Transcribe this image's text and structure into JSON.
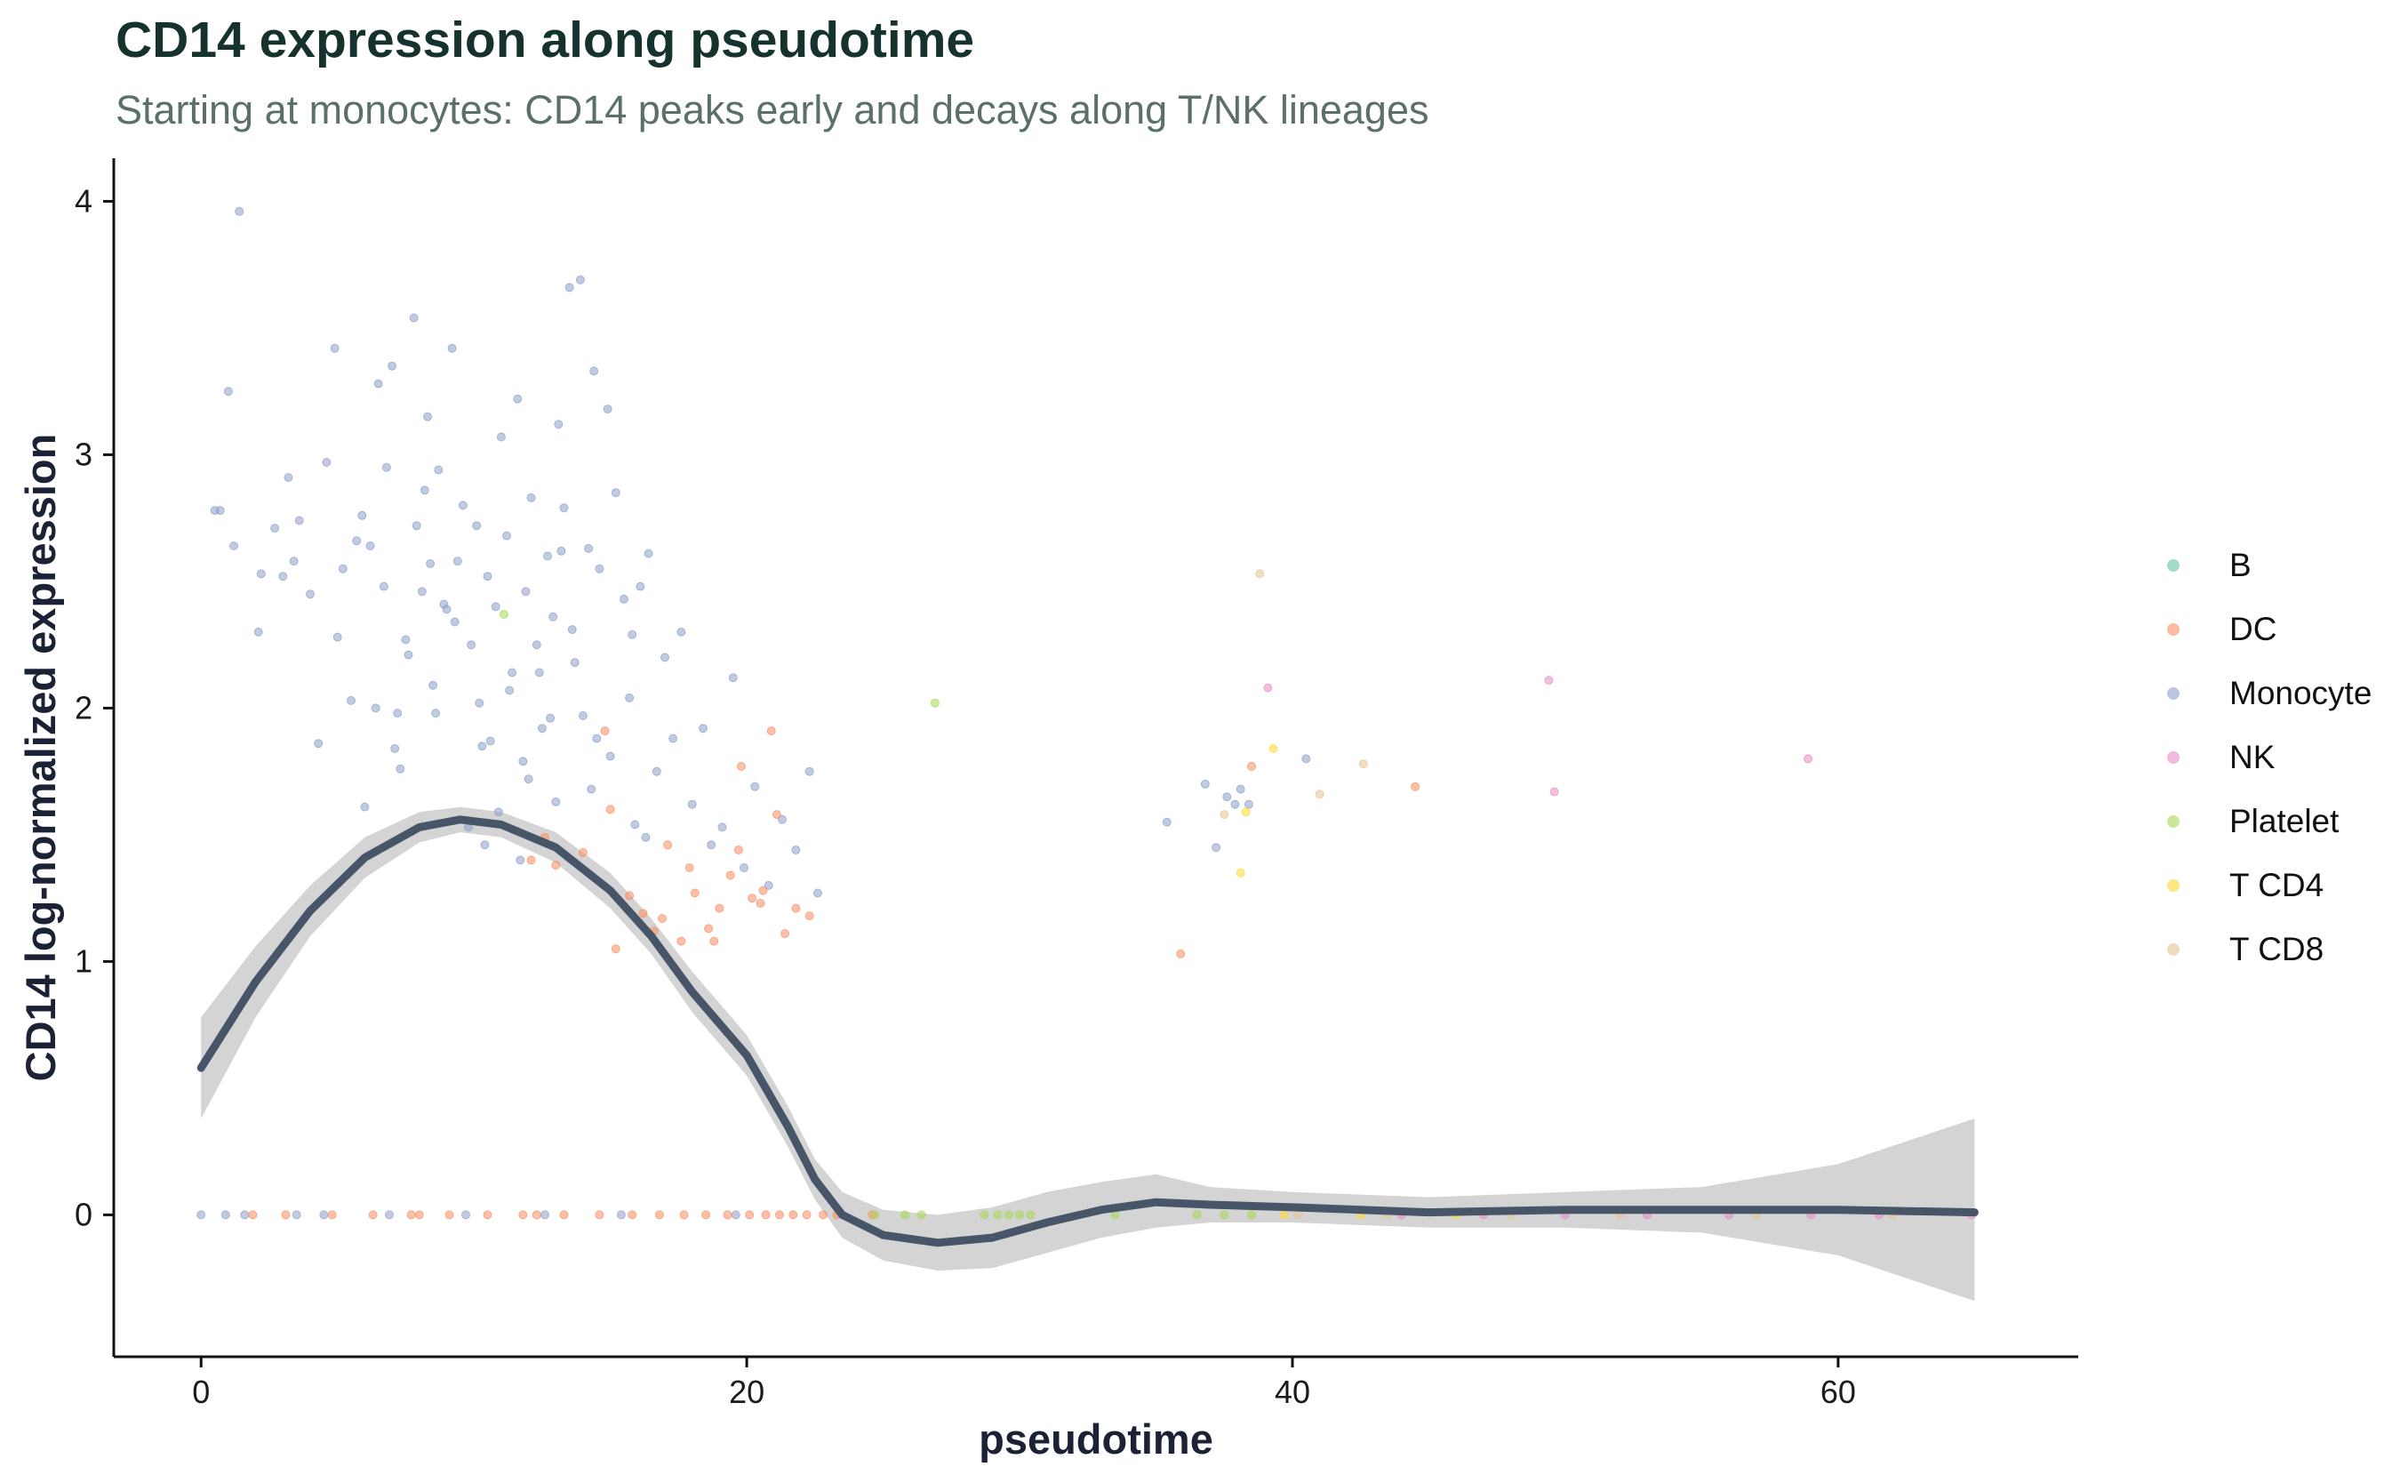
{
  "title": "CD14 expression along pseudotime",
  "subtitle": "Starting at monocytes: CD14 peaks early and decays along T/NK lineages",
  "chart_data": {
    "type": "scatter",
    "title": "CD14 expression along pseudotime",
    "subtitle": "Starting at monocytes: CD14 peaks early and decays along T/NK lineages",
    "xlabel": "pseudotime",
    "ylabel": "CD14 log-normalized expression",
    "xlim": [
      -3.2,
      68.8
    ],
    "ylim": [
      -0.56,
      4.17
    ],
    "x_ticks": [
      0,
      20,
      40,
      60
    ],
    "y_ticks": [
      0,
      1,
      2,
      3,
      4
    ],
    "grid": false,
    "legend_position": "right",
    "legend": [
      {
        "label": "B",
        "color": "#66c2a5"
      },
      {
        "label": "DC",
        "color": "#fc8d62"
      },
      {
        "label": "Monocyte",
        "color": "#8da0cb"
      },
      {
        "label": "NK",
        "color": "#e78ac3"
      },
      {
        "label": "Platelet",
        "color": "#a6d854"
      },
      {
        "label": "T CD4",
        "color": "#ffd92f"
      },
      {
        "label": "T CD8",
        "color": "#e5c494"
      }
    ],
    "smooth": {
      "x": [
        0,
        2,
        4,
        6,
        8,
        9.5,
        11,
        13,
        15,
        16.5,
        18,
        20,
        21.5,
        22.5,
        23.5,
        25,
        27,
        29,
        31,
        33,
        35,
        37,
        40,
        45,
        50,
        55,
        60,
        65
      ],
      "y": [
        0.58,
        0.92,
        1.2,
        1.41,
        1.53,
        1.56,
        1.54,
        1.45,
        1.28,
        1.1,
        0.88,
        0.63,
        0.35,
        0.14,
        0.0,
        -0.08,
        -0.11,
        -0.09,
        -0.03,
        0.02,
        0.05,
        0.04,
        0.03,
        0.01,
        0.02,
        0.02,
        0.02,
        0.01
      ],
      "se_low": [
        0.38,
        0.78,
        1.1,
        1.33,
        1.47,
        1.51,
        1.49,
        1.39,
        1.21,
        1.03,
        0.8,
        0.55,
        0.27,
        0.06,
        -0.09,
        -0.18,
        -0.22,
        -0.21,
        -0.15,
        -0.09,
        -0.05,
        -0.03,
        -0.03,
        -0.05,
        -0.05,
        -0.07,
        -0.16,
        -0.34
      ],
      "se_high": [
        0.78,
        1.06,
        1.3,
        1.49,
        1.59,
        1.61,
        1.59,
        1.51,
        1.35,
        1.17,
        0.96,
        0.71,
        0.43,
        0.22,
        0.09,
        0.02,
        0.0,
        0.03,
        0.09,
        0.13,
        0.16,
        0.11,
        0.09,
        0.07,
        0.09,
        0.11,
        0.2,
        0.38
      ],
      "color": "#475569"
    },
    "series": [
      {
        "name": "Monocyte",
        "x": [
          1.4,
          0.7,
          1.0,
          1.2,
          2.2,
          2.7,
          3.0,
          3.4,
          3.6,
          4.3,
          4.6,
          4.9,
          5.2,
          5.5,
          5.9,
          6.2,
          6.5,
          6.8,
          7.0,
          7.2,
          7.5,
          7.8,
          7.9,
          8.1,
          8.3,
          8.5,
          8.7,
          8.9,
          9.2,
          9.4,
          9.6,
          9.9,
          10.1,
          10.3,
          10.5,
          10.8,
          11.0,
          11.2,
          11.4,
          11.6,
          11.9,
          12.1,
          12.3,
          12.5,
          12.7,
          12.9,
          13.1,
          13.3,
          13.5,
          13.7,
          13.9,
          14.2,
          14.4,
          14.6,
          14.9,
          15.2,
          15.5,
          15.8,
          16.1,
          16.4,
          16.7,
          17.0,
          17.3,
          17.6,
          18.0,
          18.4,
          18.7,
          19.1,
          19.5,
          19.9,
          20.3,
          20.8,
          21.3,
          21.8,
          22.3,
          22.6,
          5.0,
          6.0,
          7.3,
          8.6,
          9.8,
          10.6,
          11.3,
          12.0,
          12.8,
          13.6,
          14.3,
          15.0,
          15.7,
          16.3,
          6.7,
          7.6,
          8.4,
          9.0,
          10.2,
          10.9,
          11.7,
          12.4,
          13.2,
          14.0,
          8.2,
          9.3,
          10.4,
          11.8,
          13.0,
          14.5,
          15.9,
          3.2,
          4.0,
          5.7,
          6.4,
          7.1,
          0.5,
          2.1,
          35.4,
          36.8,
          37.2,
          37.6,
          37.9,
          38.1,
          38.4,
          40.5,
          0.0,
          0.9,
          1.6,
          3.5,
          4.5,
          6.9,
          9.7,
          12.6,
          15.4,
          19.6
        ],
        "y": [
          3.96,
          2.78,
          3.25,
          2.64,
          2.53,
          2.71,
          2.52,
          2.58,
          2.74,
          1.86,
          2.97,
          3.42,
          2.55,
          2.03,
          2.76,
          2.64,
          3.28,
          2.95,
          3.35,
          1.98,
          2.27,
          3.54,
          2.72,
          2.46,
          3.15,
          2.09,
          2.94,
          2.41,
          3.42,
          2.58,
          2.8,
          2.25,
          2.72,
          1.85,
          2.52,
          2.4,
          3.07,
          2.68,
          2.14,
          3.22,
          2.46,
          2.83,
          2.25,
          1.92,
          2.6,
          2.36,
          3.12,
          2.79,
          3.66,
          2.18,
          3.69,
          2.63,
          3.33,
          2.55,
          3.18,
          2.85,
          2.43,
          2.29,
          2.48,
          2.61,
          1.75,
          2.2,
          1.88,
          2.3,
          1.62,
          1.92,
          1.46,
          1.53,
          2.12,
          1.37,
          1.69,
          1.3,
          1.56,
          1.44,
          1.75,
          1.27,
          2.28,
          1.61,
          1.76,
          1.98,
          1.53,
          1.87,
          2.07,
          1.72,
          1.96,
          2.31,
          1.68,
          1.81,
          2.04,
          1.49,
          2.48,
          2.21,
          2.57,
          2.39,
          2.02,
          1.59,
          1.4,
          2.14,
          2.62,
          1.97,
          2.86,
          2.34,
          1.46,
          1.79,
          1.63,
          1.88,
          1.54,
          2.91,
          2.45,
          2.66,
          2.0,
          1.84,
          2.78,
          2.3,
          1.55,
          1.7,
          1.45,
          1.65,
          1.62,
          1.68,
          1.62,
          1.8,
          0,
          0,
          0,
          0,
          0,
          0,
          0,
          0,
          0,
          0
        ]
      },
      {
        "name": "DC",
        "x": [
          12.1,
          12.6,
          13.0,
          14.0,
          14.8,
          15.2,
          15.7,
          16.2,
          16.6,
          17.1,
          17.6,
          18.1,
          18.6,
          19.0,
          19.4,
          19.8,
          20.2,
          20.5,
          20.9,
          21.4,
          21.8,
          22.3,
          17.9,
          18.8,
          19.7,
          20.6,
          21.1,
          15.0,
          16.9,
          35.9,
          38.5,
          44.5,
          1.9,
          3.1,
          4.8,
          6.3,
          7.7,
          9.1,
          10.5,
          11.8,
          13.3,
          14.6,
          15.8,
          16.8,
          17.7,
          18.5,
          19.3,
          20.1,
          20.7,
          21.2,
          21.7,
          22.2,
          22.8,
          23.3,
          24.6,
          8.0,
          12.3
        ],
        "y": [
          1.4,
          1.49,
          1.38,
          1.43,
          1.91,
          1.05,
          1.26,
          1.19,
          1.12,
          1.46,
          1.08,
          1.27,
          1.13,
          1.21,
          1.34,
          1.77,
          1.25,
          1.23,
          1.91,
          1.11,
          1.21,
          1.18,
          1.37,
          1.08,
          1.44,
          1.28,
          1.58,
          1.6,
          1.17,
          1.03,
          1.77,
          1.69,
          0,
          0,
          0,
          0,
          0,
          0,
          0,
          0,
          0,
          0,
          0,
          0,
          0,
          0,
          0,
          0,
          0,
          0,
          0,
          0,
          0,
          0,
          0,
          0,
          0
        ]
      },
      {
        "name": "NK",
        "x": [
          39.1,
          49.4,
          49.6,
          58.9,
          44.0,
          47.0,
          50.0,
          53.0,
          56.0,
          59.0,
          61.5,
          64.9
        ],
        "y": [
          2.08,
          2.11,
          1.67,
          1.8,
          0,
          0,
          0,
          0,
          0,
          0,
          0,
          0
        ]
      },
      {
        "name": "Platelet",
        "x": [
          26.9,
          11.1,
          24.7,
          25.8,
          26.4,
          28.7,
          29.2,
          29.6,
          30.0,
          30.4,
          33.5,
          36.5,
          37.5,
          38.5
        ],
        "y": [
          2.02,
          2.37,
          0,
          0,
          0,
          0,
          0,
          0,
          0,
          0,
          0,
          0,
          0,
          0
        ]
      },
      {
        "name": "T CD4",
        "x": [
          38.1,
          38.3,
          39.3,
          39.7,
          42.5,
          46.0
        ],
        "y": [
          1.35,
          1.59,
          1.84,
          0,
          0,
          0
        ]
      },
      {
        "name": "T CD8",
        "x": [
          38.8,
          37.5,
          41.0,
          42.6,
          40.2,
          43.5,
          48.0,
          52.0,
          57.0,
          62.0
        ],
        "y": [
          2.53,
          1.58,
          1.66,
          1.78,
          0,
          0,
          0,
          0,
          0,
          0
        ]
      },
      {
        "name": "B",
        "x": [],
        "y": []
      }
    ]
  }
}
